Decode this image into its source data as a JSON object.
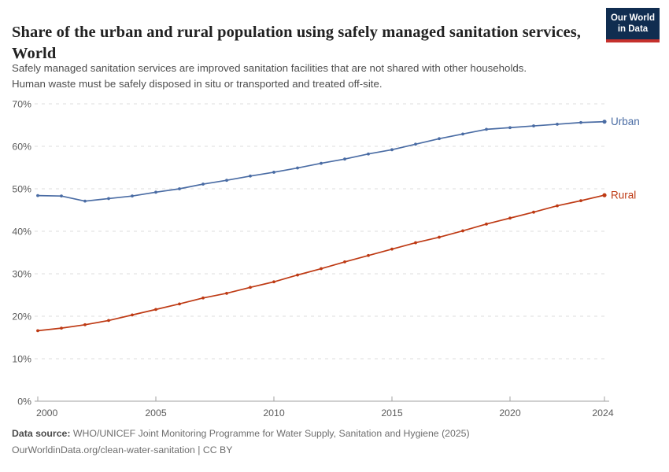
{
  "branding": {
    "logo_line1": "Our World",
    "logo_line2": "in Data",
    "logo_bg_color": "#102D50",
    "logo_bar_color": "#C5302C"
  },
  "header": {
    "title": "Share of the urban and rural population using safely managed sanitation services, World",
    "subtitle_line1": "Safely managed sanitation services are improved sanitation facilities that are not shared with other households.",
    "subtitle_line2": "Human waste must be safely disposed in situ or transported and treated off-site."
  },
  "chart_data": {
    "type": "line",
    "title": "Share of the urban and rural population using safely managed sanitation services, World",
    "xlabel": "",
    "ylabel": "",
    "x": [
      2000,
      2001,
      2002,
      2003,
      2004,
      2005,
      2006,
      2007,
      2008,
      2009,
      2010,
      2011,
      2012,
      2013,
      2014,
      2015,
      2016,
      2017,
      2018,
      2019,
      2020,
      2021,
      2022,
      2023,
      2024
    ],
    "series": [
      {
        "name": "Urban",
        "color": "#4A6CA4",
        "values": [
          48.4,
          48.3,
          47.1,
          47.7,
          48.3,
          49.2,
          50.0,
          51.1,
          52.0,
          53.0,
          53.9,
          54.9,
          56.0,
          57.0,
          58.2,
          59.2,
          60.5,
          61.8,
          62.9,
          64.0,
          64.4,
          64.8,
          65.2,
          65.6,
          65.8
        ]
      },
      {
        "name": "Rural",
        "color": "#BE3A14",
        "values": [
          16.6,
          17.2,
          18.0,
          19.0,
          20.3,
          21.6,
          22.9,
          24.3,
          25.4,
          26.8,
          28.1,
          29.7,
          31.2,
          32.8,
          34.3,
          35.8,
          37.3,
          38.6,
          40.1,
          41.7,
          43.1,
          44.5,
          46.0,
          47.2,
          48.5
        ]
      }
    ],
    "ylim": [
      0,
      70
    ],
    "yticks": [
      0,
      10,
      20,
      30,
      40,
      50,
      60,
      70
    ],
    "y_tick_suffix": "%",
    "xticks": [
      2000,
      2005,
      2010,
      2015,
      2020,
      2024
    ],
    "grid": "horizontal-dashed",
    "legend": "end-of-line-labels"
  },
  "footer": {
    "source_label": "Data source:",
    "source_text": "WHO/UNICEF Joint Monitoring Programme for Water Supply, Sanitation and Hygiene (2025)",
    "link_text": "OurWorldinData.org/clean-water-sanitation | CC BY"
  },
  "colors": {
    "grid": "#DCDCDC",
    "axis": "#A0A0A0",
    "tick_text": "#5B5B5B"
  }
}
